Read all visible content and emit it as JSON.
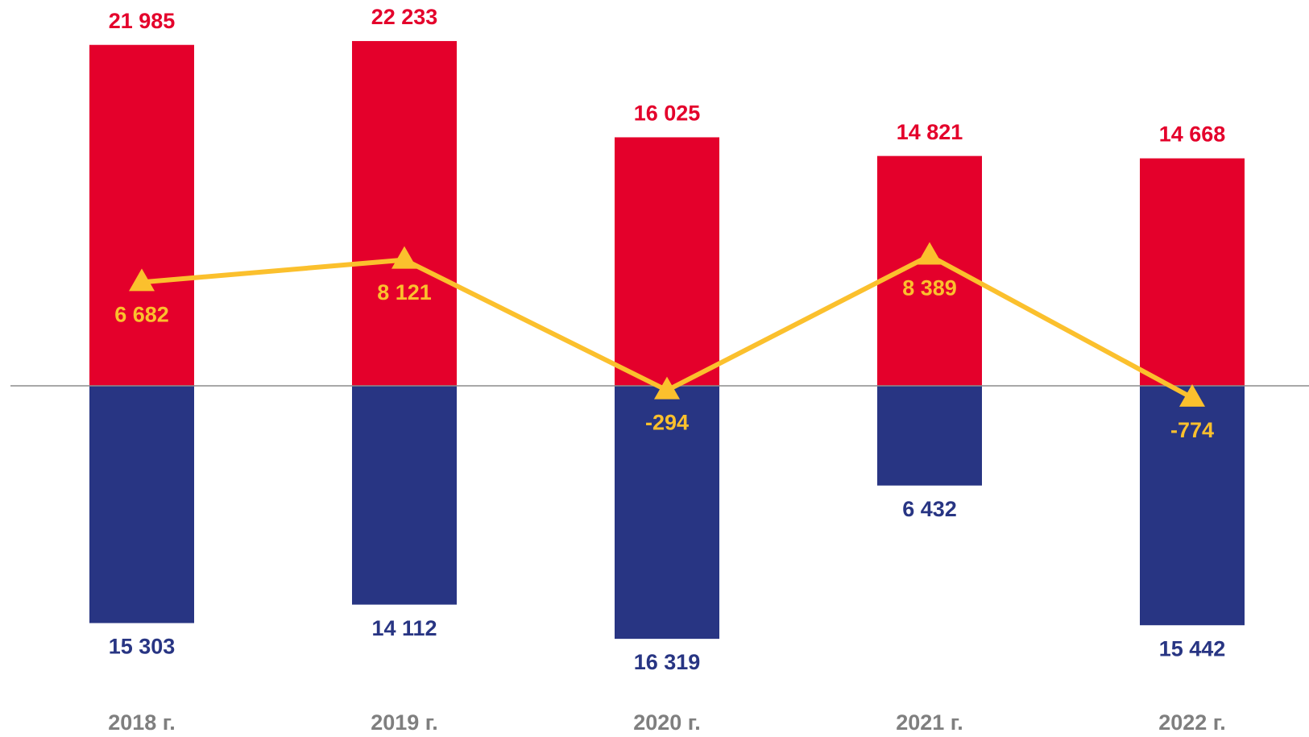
{
  "chart_data": {
    "type": "bar",
    "categories": [
      "2018 г.",
      "2019 г.",
      "2020 г.",
      "2021 г.",
      "2022 г."
    ],
    "series": [
      {
        "color": "#e4002b",
        "values": [
          21985,
          22233,
          16025,
          14821,
          14668
        ],
        "value_labels": [
          "21 985",
          "22 233",
          "16 025",
          "14 821",
          "14 668"
        ]
      },
      {
        "color": "#283583",
        "values": [
          -15303,
          -14112,
          -16319,
          -6432,
          -15442
        ],
        "value_labels": [
          "15 303",
          "14 112",
          "16 319",
          "6 432",
          "15 442"
        ]
      },
      {
        "type": "line",
        "color": "#fbc02d",
        "values": [
          6682,
          8121,
          -294,
          8389,
          -774
        ],
        "value_labels": [
          "6 682",
          "8 121",
          "-294",
          "8 389",
          "-774"
        ]
      }
    ],
    "ylim": [
      -22650,
      24880
    ]
  }
}
